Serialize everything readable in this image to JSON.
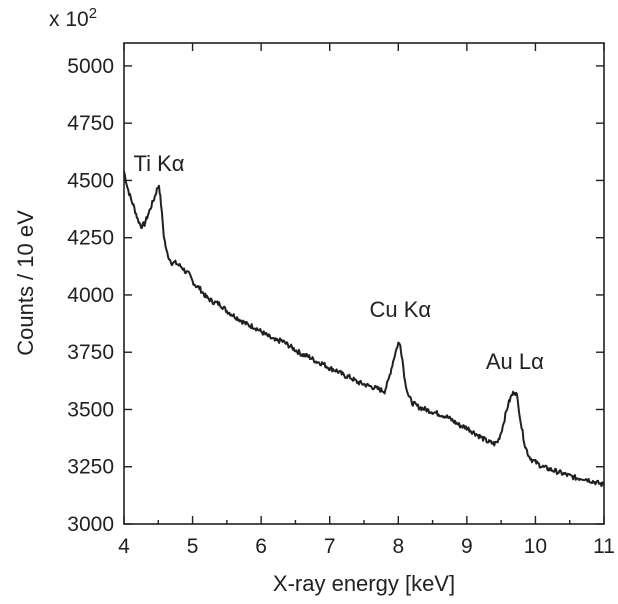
{
  "chart_data": {
    "type": "line",
    "title": "",
    "xlabel": "X-ray energy [keV]",
    "ylabel": "Counts / 10 eV",
    "y_multiplier_label": "x 10",
    "y_multiplier_exponent": "2",
    "xlim": [
      4,
      11
    ],
    "ylim": [
      3000,
      5100
    ],
    "x_ticks": [
      4,
      5,
      6,
      7,
      8,
      9,
      10,
      11
    ],
    "y_ticks": [
      3000,
      3250,
      3500,
      3750,
      4000,
      4250,
      4500,
      4750,
      5000
    ],
    "grid": false,
    "legend": "none",
    "line_color": "#231f20",
    "annotations": [
      {
        "text": "Ti Kα",
        "x": 4.51,
        "y": 4480
      },
      {
        "text": "Cu Kα",
        "x": 8.03,
        "y": 3790
      },
      {
        "text": "Au Lα",
        "x": 9.7,
        "y": 3580
      }
    ],
    "series": [
      {
        "x": [
          4.0,
          4.05,
          4.1,
          4.15,
          4.2,
          4.25,
          4.3,
          4.35,
          4.4,
          4.45,
          4.48,
          4.51,
          4.54,
          4.58,
          4.62,
          4.66,
          4.7,
          4.75,
          4.8,
          4.85,
          4.9,
          4.95,
          5.0,
          5.05,
          5.1,
          5.15,
          5.2,
          5.3,
          5.4,
          5.5,
          5.6,
          5.7,
          5.8,
          5.9,
          6.0,
          6.1,
          6.2,
          6.3,
          6.4,
          6.5,
          6.6,
          6.7,
          6.8,
          6.9,
          7.0,
          7.1,
          7.2,
          7.3,
          7.4,
          7.5,
          7.6,
          7.7,
          7.8,
          7.85,
          7.9,
          7.95,
          8.0,
          8.03,
          8.06,
          8.1,
          8.15,
          8.2,
          8.3,
          8.4,
          8.5,
          8.6,
          8.7,
          8.8,
          8.9,
          9.0,
          9.1,
          9.2,
          9.3,
          9.4,
          9.45,
          9.5,
          9.55,
          9.6,
          9.65,
          9.7,
          9.73,
          9.76,
          9.8,
          9.85,
          9.9,
          9.95,
          10.0,
          10.1,
          10.2,
          10.3,
          10.4,
          10.5,
          10.6,
          10.7,
          10.8,
          10.9,
          11.0
        ],
        "y": [
          4540,
          4470,
          4420,
          4380,
          4330,
          4300,
          4310,
          4350,
          4390,
          4430,
          4460,
          4480,
          4400,
          4260,
          4190,
          4160,
          4140,
          4140,
          4130,
          4120,
          4100,
          4090,
          4060,
          4040,
          4030,
          4010,
          3990,
          3970,
          3960,
          3930,
          3910,
          3890,
          3870,
          3860,
          3840,
          3820,
          3800,
          3800,
          3780,
          3760,
          3740,
          3730,
          3710,
          3700,
          3680,
          3670,
          3650,
          3640,
          3620,
          3610,
          3600,
          3590,
          3580,
          3620,
          3680,
          3740,
          3790,
          3780,
          3720,
          3620,
          3560,
          3530,
          3510,
          3500,
          3490,
          3480,
          3470,
          3450,
          3430,
          3420,
          3400,
          3380,
          3360,
          3350,
          3360,
          3400,
          3460,
          3520,
          3560,
          3580,
          3560,
          3500,
          3420,
          3340,
          3300,
          3280,
          3270,
          3250,
          3240,
          3230,
          3220,
          3210,
          3200,
          3200,
          3190,
          3180,
          3170
        ]
      }
    ]
  }
}
